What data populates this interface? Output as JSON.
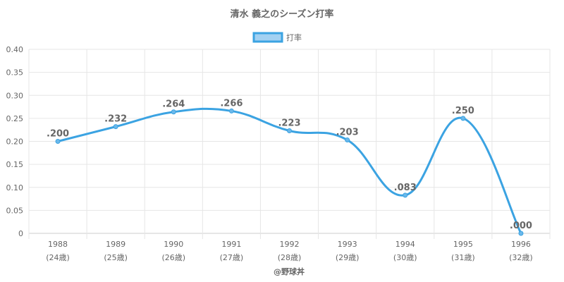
{
  "chart_data": {
    "type": "line",
    "title": "清水 義之のシーズン打率",
    "legend": {
      "label": "打率",
      "position": "top-center"
    },
    "categories": [
      "1988",
      "1989",
      "1990",
      "1991",
      "1992",
      "1993",
      "1994",
      "1995",
      "1996"
    ],
    "ages": [
      "(24歳)",
      "(25歳)",
      "(26歳)",
      "(27歳)",
      "(28歳)",
      "(29歳)",
      "(30歳)",
      "(31歳)",
      "(32歳)"
    ],
    "series": [
      {
        "name": "打率",
        "values": [
          0.2,
          0.232,
          0.264,
          0.266,
          0.223,
          0.203,
          0.083,
          0.25,
          0.0
        ]
      }
    ],
    "data_labels": [
      ".200",
      ".232",
      ".264",
      ".266",
      ".223",
      ".203",
      ".083",
      ".250",
      ".000"
    ],
    "y_ticks": [
      "0",
      "0.05",
      "0.10",
      "0.15",
      "0.20",
      "0.25",
      "0.30",
      "0.35",
      "0.40"
    ],
    "ylim": [
      0,
      0.4
    ],
    "grid": true,
    "colors": {
      "line": "#3ba3e2",
      "point_fill": "#6bb8ea",
      "legend_fill": "#a3d1f2",
      "grid": "#e6e6e6"
    },
    "credit": "@野球丼"
  }
}
